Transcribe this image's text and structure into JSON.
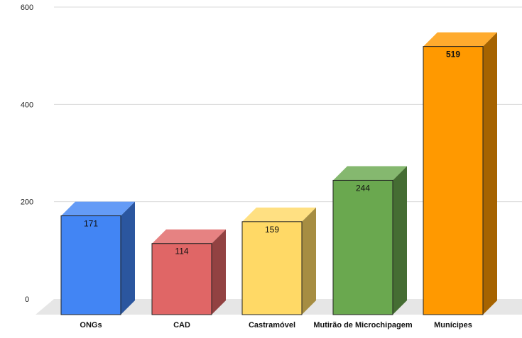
{
  "chart_data": {
    "type": "bar",
    "title": "",
    "xlabel": "",
    "ylabel": "",
    "ylim": [
      0,
      600
    ],
    "yticks": [
      0,
      200,
      400,
      600
    ],
    "grid": true,
    "three_d": true,
    "categories": [
      "ONGs",
      "CAD",
      "Castramóvel",
      "Mutirão de Microchipagem",
      "Munícipes"
    ],
    "values": [
      171,
      114,
      159,
      244,
      519
    ],
    "value_labels": [
      "171",
      "114",
      "159",
      "244",
      "519"
    ],
    "bold_value_index": 4,
    "colors": [
      "#4285f4",
      "#e06666",
      "#ffd966",
      "#6aa84f",
      "#ff9900"
    ]
  }
}
